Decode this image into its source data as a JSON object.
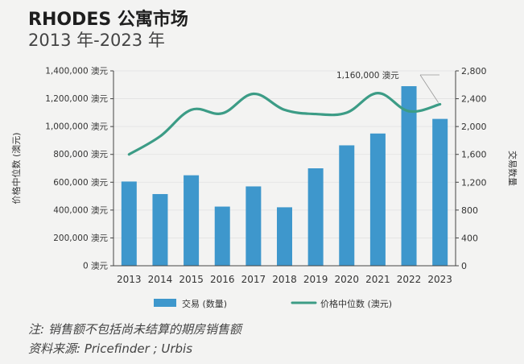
{
  "header": {
    "title": "RHODES 公寓市场",
    "subtitle": "2013 年-2023 年"
  },
  "footnotes": {
    "note": "注: 销售额不包括尚未结算的期房销售额",
    "source": "资料来源: Pricefinder ; Urbis"
  },
  "colors": {
    "bar": "#3e97cc",
    "line": "#3c9c86",
    "axis": "#444444",
    "grid": "#e2e2e2"
  },
  "chart_data": {
    "type": "bar",
    "categories": [
      "2013",
      "2014",
      "2015",
      "2016",
      "2017",
      "2018",
      "2019",
      "2020",
      "2021",
      "2022",
      "2023"
    ],
    "series": [
      {
        "name": "交易 (数量)",
        "type": "bar",
        "axis": "right",
        "values": [
          1210,
          1030,
          1300,
          850,
          1140,
          840,
          1400,
          1730,
          1900,
          2580,
          2110
        ]
      },
      {
        "name": "价格中位数 (澳元)",
        "type": "line",
        "axis": "left",
        "values": [
          800000,
          930000,
          1120000,
          1095000,
          1235000,
          1120000,
          1090000,
          1100000,
          1240000,
          1110000,
          1160000
        ]
      }
    ],
    "left_axis": {
      "label": "价格中位数 (澳元)",
      "range": [
        0,
        1400000
      ],
      "ticks": [
        "0 澳元",
        "200,000 澳元",
        "400,000 澳元",
        "600,000 澳元",
        "800,000 澳元",
        "1,000,000 澳元",
        "1,200,000 澳元",
        "1,400,000 澳元"
      ]
    },
    "right_axis": {
      "label": "交易数量",
      "range": [
        0,
        2800
      ],
      "ticks": [
        "0",
        "400",
        "800",
        "1,200",
        "1,600",
        "2,000",
        "2,400",
        "2,800"
      ]
    },
    "annotation": "1,160,000 澳元",
    "grid": true,
    "legend_position": "bottom"
  }
}
